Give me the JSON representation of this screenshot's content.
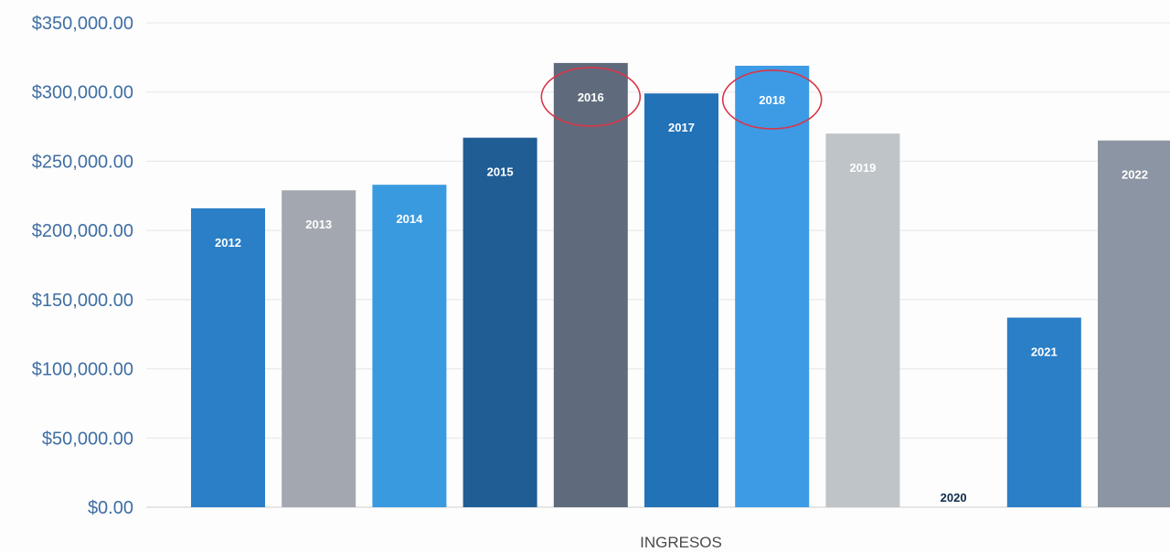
{
  "chart_data": {
    "type": "bar",
    "title": "",
    "xlabel": "INGRESOS",
    "ylabel": "",
    "ylim": [
      0,
      350000
    ],
    "yticks": [
      0,
      50000,
      100000,
      150000,
      200000,
      250000,
      300000,
      350000
    ],
    "ytick_labels": [
      "$0.00",
      "$50,000.00",
      "$100,000.00",
      "$150,000.00",
      "$200,000.00",
      "$250,000.00",
      "$300,000.00",
      "$350,000.00"
    ],
    "grid": true,
    "legend": "none",
    "categories": [
      "2012",
      "2013",
      "2014",
      "2015",
      "2016",
      "2017",
      "2018",
      "2019",
      "2020",
      "2021",
      "2022"
    ],
    "values": [
      216000,
      229000,
      233000,
      267000,
      321000,
      299000,
      319000,
      270000,
      0,
      137000,
      265000
    ],
    "bar_colors": [
      "#2a7fc7",
      "#a3a8b0",
      "#3a9ae0",
      "#1f5d94",
      "#5f6b7c",
      "#2272b8",
      "#3c9be4",
      "#bfc4c9",
      "#ffffff",
      "#2a7fc7",
      "#8c95a3"
    ],
    "label_colors": [
      "#ffffff",
      "#ffffff",
      "#ffffff",
      "#ffffff",
      "#ffffff",
      "#ffffff",
      "#ffffff",
      "#ffffff",
      "#0f2a4a",
      "#ffffff",
      "#ffffff"
    ],
    "highlighted": [
      "2016",
      "2018"
    ],
    "highlight_color": "#d9364a"
  }
}
